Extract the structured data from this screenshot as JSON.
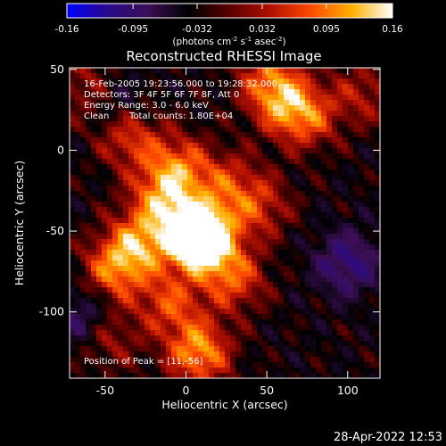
{
  "chart_data": {
    "type": "heatmap",
    "title": "Reconstructed RHESSI Image",
    "xlabel": "Heliocentric X (arcsec)",
    "ylabel": "Heliocentric Y (arcsec)",
    "xlim": [
      -72,
      120
    ],
    "ylim": [
      -141,
      51
    ],
    "x_ticks": [
      -50,
      0,
      50,
      100
    ],
    "y_ticks": [
      50,
      0,
      -50,
      -100
    ],
    "colorbar": {
      "range": [
        -0.16,
        0.16
      ],
      "tick_labels": [
        "-0.16",
        "-0.095",
        "-0.032",
        "0.032",
        "0.095",
        "0.16"
      ],
      "tick_values": [
        -0.16,
        -0.095,
        -0.032,
        0.032,
        0.095,
        0.16
      ],
      "unit_prefix": "(photons cm",
      "unit_sup1": "-2",
      "unit_mid": " s",
      "unit_sup2": "-1",
      "unit_mid2": " asec",
      "unit_sup3": "-2",
      "unit_suffix": ")",
      "colors": [
        "#0000ff",
        "#2a0a8a",
        "#3a0f55",
        "#000000",
        "#5a0000",
        "#b01000",
        "#ff4a00",
        "#ffb000",
        "#ffffff"
      ]
    },
    "annotations": [
      "16-Feb-2005 19:23:56.000 to 19:28:32.000",
      "Detectors: 3F 4F 5F 6F 7F 8F, Att 0",
      "Energy Range: 3.0 - 6.0 keV",
      "Clean",
      "Total counts: 1.80E+04"
    ],
    "peak_label": "Position of Peak = [11,-56]",
    "peak": {
      "x": 11,
      "y": -56,
      "value": 0.16
    },
    "sources": [
      {
        "x": 11,
        "y": -56,
        "value": 0.16
      },
      {
        "x": 4,
        "y": -50,
        "value": 0.115
      },
      {
        "x": -30,
        "y": -58,
        "value": 0.105
      },
      {
        "x": -45,
        "y": -75,
        "value": 0.095
      },
      {
        "x": 8,
        "y": -125,
        "value": 0.12
      },
      {
        "x": -15,
        "y": -30,
        "value": 0.095
      },
      {
        "x": -5,
        "y": -10,
        "value": 0.09
      },
      {
        "x": -35,
        "y": 8,
        "value": 0.08
      },
      {
        "x": 30,
        "y": -80,
        "value": 0.085
      },
      {
        "x": 45,
        "y": -35,
        "value": 0.07
      },
      {
        "x": 60,
        "y": 30,
        "value": 0.085
      },
      {
        "x": 75,
        "y": 20,
        "value": 0.08
      },
      {
        "x": 50,
        "y": 45,
        "value": 0.07
      },
      {
        "x": -50,
        "y": -115,
        "value": 0.07
      },
      {
        "x": -10,
        "y": -95,
        "value": 0.08
      },
      {
        "x": 25,
        "y": -20,
        "value": 0.065
      },
      {
        "x": -60,
        "y": 38,
        "value": 0.065
      },
      {
        "x": 100,
        "y": -70,
        "value": -0.08
      },
      {
        "x": -62,
        "y": -105,
        "value": -0.075
      },
      {
        "x": -45,
        "y": 30,
        "value": -0.05
      },
      {
        "x": 110,
        "y": 35,
        "value": 0.055
      }
    ]
  },
  "timestamp": "28-Apr-2022 12:53"
}
